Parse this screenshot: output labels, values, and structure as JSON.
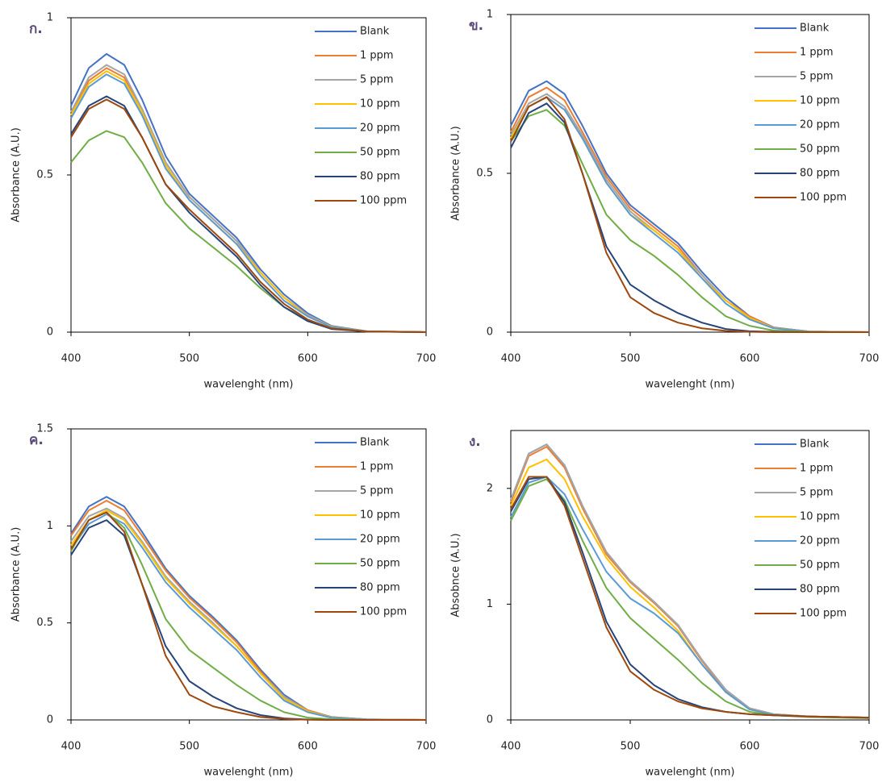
{
  "chart_data": [
    {
      "type": "line",
      "panel_label": "ก.",
      "xlabel": "wavelenght (nm)",
      "ylabel": "Absorbance (A.U.)",
      "x": [
        400,
        415,
        430,
        445,
        460,
        480,
        500,
        520,
        540,
        560,
        580,
        600,
        620,
        650,
        700
      ],
      "xlim": [
        400,
        700
      ],
      "xticks": [
        400,
        500,
        600,
        700
      ],
      "ylim": [
        0,
        1
      ],
      "yticks": [
        0,
        0.5,
        1
      ],
      "series": [
        {
          "name": "Blank",
          "color": "#4472c4",
          "values": [
            0.72,
            0.84,
            0.885,
            0.85,
            0.74,
            0.56,
            0.44,
            0.37,
            0.3,
            0.2,
            0.12,
            0.06,
            0.02,
            0.003,
            0
          ]
        },
        {
          "name": "1 ppm",
          "color": "#ed7d31",
          "values": [
            0.69,
            0.8,
            0.84,
            0.81,
            0.71,
            0.54,
            0.43,
            0.36,
            0.29,
            0.19,
            0.11,
            0.055,
            0.018,
            0.003,
            0
          ]
        },
        {
          "name": "5 ppm",
          "color": "#a5a5a5",
          "values": [
            0.7,
            0.81,
            0.85,
            0.82,
            0.71,
            0.54,
            0.43,
            0.36,
            0.29,
            0.19,
            0.11,
            0.055,
            0.018,
            0.003,
            0
          ]
        },
        {
          "name": "10 ppm",
          "color": "#ffc000",
          "values": [
            0.69,
            0.79,
            0.83,
            0.8,
            0.7,
            0.53,
            0.42,
            0.35,
            0.28,
            0.19,
            0.11,
            0.05,
            0.017,
            0.003,
            0
          ]
        },
        {
          "name": "20 ppm",
          "color": "#5b9bd5",
          "values": [
            0.68,
            0.78,
            0.82,
            0.79,
            0.69,
            0.52,
            0.42,
            0.35,
            0.28,
            0.18,
            0.1,
            0.05,
            0.016,
            0.003,
            0
          ]
        },
        {
          "name": "50 ppm",
          "color": "#70ad47",
          "values": [
            0.54,
            0.61,
            0.64,
            0.62,
            0.54,
            0.41,
            0.33,
            0.27,
            0.21,
            0.14,
            0.08,
            0.04,
            0.012,
            0.002,
            0
          ]
        },
        {
          "name": "80 ppm",
          "color": "#264478",
          "values": [
            0.63,
            0.72,
            0.75,
            0.72,
            0.62,
            0.47,
            0.38,
            0.31,
            0.24,
            0.15,
            0.08,
            0.035,
            0.01,
            0.002,
            0
          ]
        },
        {
          "name": "100 ppm",
          "color": "#9e480e",
          "values": [
            0.62,
            0.71,
            0.74,
            0.71,
            0.62,
            0.47,
            0.39,
            0.32,
            0.25,
            0.16,
            0.09,
            0.04,
            0.012,
            0.002,
            0
          ]
        }
      ]
    },
    {
      "type": "line",
      "panel_label": "ข.",
      "xlabel": "wavelenght (nm)",
      "ylabel": "Absorbance (A.U.)",
      "x": [
        400,
        415,
        430,
        445,
        460,
        480,
        500,
        520,
        540,
        560,
        580,
        600,
        620,
        650,
        700
      ],
      "xlim": [
        400,
        700
      ],
      "xticks": [
        400,
        500,
        600,
        700
      ],
      "ylim": [
        0,
        1
      ],
      "yticks": [
        0,
        0.5,
        1
      ],
      "series": [
        {
          "name": "Blank",
          "color": "#4472c4",
          "values": [
            0.65,
            0.76,
            0.79,
            0.75,
            0.65,
            0.5,
            0.4,
            0.34,
            0.28,
            0.19,
            0.11,
            0.05,
            0.015,
            0.002,
            0
          ]
        },
        {
          "name": "1 ppm",
          "color": "#ed7d31",
          "values": [
            0.63,
            0.74,
            0.77,
            0.73,
            0.63,
            0.49,
            0.39,
            0.33,
            0.27,
            0.18,
            0.1,
            0.05,
            0.014,
            0.002,
            0
          ]
        },
        {
          "name": "5 ppm",
          "color": "#a5a5a5",
          "values": [
            0.62,
            0.72,
            0.75,
            0.71,
            0.62,
            0.48,
            0.38,
            0.32,
            0.26,
            0.18,
            0.1,
            0.045,
            0.013,
            0.002,
            0
          ]
        },
        {
          "name": "10 ppm",
          "color": "#ffc000",
          "values": [
            0.61,
            0.71,
            0.74,
            0.7,
            0.61,
            0.47,
            0.37,
            0.32,
            0.26,
            0.17,
            0.1,
            0.045,
            0.013,
            0.002,
            0
          ]
        },
        {
          "name": "20 ppm",
          "color": "#5b9bd5",
          "values": [
            0.6,
            0.71,
            0.74,
            0.7,
            0.61,
            0.47,
            0.37,
            0.31,
            0.25,
            0.17,
            0.09,
            0.04,
            0.012,
            0.002,
            0
          ]
        },
        {
          "name": "50 ppm",
          "color": "#70ad47",
          "values": [
            0.6,
            0.68,
            0.7,
            0.65,
            0.53,
            0.37,
            0.29,
            0.24,
            0.18,
            0.11,
            0.05,
            0.02,
            0.005,
            0.001,
            0
          ]
        },
        {
          "name": "80 ppm",
          "color": "#264478",
          "values": [
            0.58,
            0.69,
            0.72,
            0.66,
            0.5,
            0.27,
            0.15,
            0.1,
            0.06,
            0.03,
            0.01,
            0.003,
            0.001,
            0,
            0
          ]
        },
        {
          "name": "100 ppm",
          "color": "#9e480e",
          "values": [
            0.6,
            0.71,
            0.74,
            0.67,
            0.5,
            0.25,
            0.11,
            0.06,
            0.03,
            0.012,
            0.004,
            0.001,
            0,
            0,
            0
          ]
        }
      ]
    },
    {
      "type": "line",
      "panel_label": "ค.",
      "xlabel": "wavelenght (nm)",
      "ylabel": "Absorbance (A.U.)",
      "x": [
        400,
        415,
        430,
        445,
        460,
        480,
        500,
        520,
        540,
        560,
        580,
        600,
        620,
        650,
        700
      ],
      "xlim": [
        400,
        700
      ],
      "xticks": [
        400,
        500,
        600,
        700
      ],
      "ylim": [
        0,
        1.5
      ],
      "yticks": [
        0,
        0.5,
        1,
        1.5
      ],
      "series": [
        {
          "name": "Blank",
          "color": "#4472c4",
          "values": [
            0.96,
            1.1,
            1.15,
            1.1,
            0.97,
            0.78,
            0.64,
            0.53,
            0.41,
            0.26,
            0.13,
            0.05,
            0.015,
            0.003,
            0
          ]
        },
        {
          "name": "1 ppm",
          "color": "#ed7d31",
          "values": [
            0.95,
            1.08,
            1.13,
            1.08,
            0.95,
            0.77,
            0.63,
            0.52,
            0.4,
            0.25,
            0.12,
            0.05,
            0.014,
            0.003,
            0
          ]
        },
        {
          "name": "5 ppm",
          "color": "#a5a5a5",
          "values": [
            0.92,
            1.05,
            1.09,
            1.04,
            0.92,
            0.74,
            0.61,
            0.5,
            0.38,
            0.24,
            0.12,
            0.045,
            0.013,
            0.002,
            0
          ]
        },
        {
          "name": "10 ppm",
          "color": "#ffc000",
          "values": [
            0.9,
            1.03,
            1.08,
            1.03,
            0.91,
            0.73,
            0.6,
            0.49,
            0.38,
            0.24,
            0.11,
            0.045,
            0.012,
            0.002,
            0
          ]
        },
        {
          "name": "20 ppm",
          "color": "#5b9bd5",
          "values": [
            0.88,
            1.01,
            1.06,
            1.01,
            0.89,
            0.71,
            0.58,
            0.47,
            0.36,
            0.22,
            0.1,
            0.04,
            0.011,
            0.002,
            0
          ]
        },
        {
          "name": "50 ppm",
          "color": "#70ad47",
          "values": [
            0.87,
            1.03,
            1.07,
            0.99,
            0.8,
            0.52,
            0.36,
            0.27,
            0.18,
            0.1,
            0.04,
            0.012,
            0.003,
            0,
            0
          ]
        },
        {
          "name": "80 ppm",
          "color": "#264478",
          "values": [
            0.85,
            0.99,
            1.03,
            0.95,
            0.7,
            0.38,
            0.2,
            0.12,
            0.06,
            0.025,
            0.008,
            0.002,
            0,
            0,
            0
          ]
        },
        {
          "name": "100 ppm",
          "color": "#9e480e",
          "values": [
            0.88,
            1.03,
            1.07,
            0.97,
            0.7,
            0.33,
            0.13,
            0.07,
            0.04,
            0.015,
            0.005,
            0.001,
            0,
            0,
            0
          ]
        }
      ]
    },
    {
      "type": "line",
      "panel_label": "ง.",
      "xlabel": "wavelenght (nm)",
      "ylabel": "Absobnce (A.U.)",
      "x": [
        400,
        415,
        430,
        445,
        460,
        480,
        500,
        520,
        540,
        560,
        580,
        600,
        620,
        650,
        700
      ],
      "xlim": [
        400,
        700
      ],
      "xticks": [
        400,
        500,
        600,
        700
      ],
      "ylim": [
        0,
        2.5
      ],
      "yticks": [
        0,
        1,
        2
      ],
      "series": [
        {
          "name": "Blank",
          "color": "#4472c4",
          "values": [
            1.9,
            2.3,
            2.38,
            2.2,
            1.85,
            1.45,
            1.2,
            1.02,
            0.82,
            0.52,
            0.26,
            0.1,
            0.05,
            0.03,
            0.02
          ]
        },
        {
          "name": "1 ppm",
          "color": "#ed7d31",
          "values": [
            1.88,
            2.28,
            2.36,
            2.18,
            1.83,
            1.43,
            1.19,
            1.01,
            0.81,
            0.51,
            0.25,
            0.1,
            0.05,
            0.03,
            0.02
          ]
        },
        {
          "name": "5 ppm",
          "color": "#a5a5a5",
          "values": [
            1.9,
            2.3,
            2.38,
            2.2,
            1.85,
            1.45,
            1.2,
            1.02,
            0.82,
            0.52,
            0.26,
            0.1,
            0.05,
            0.03,
            0.02
          ]
        },
        {
          "name": "10 ppm",
          "color": "#ffc000",
          "values": [
            1.85,
            2.18,
            2.25,
            2.08,
            1.76,
            1.4,
            1.15,
            0.97,
            0.77,
            0.48,
            0.24,
            0.09,
            0.045,
            0.03,
            0.02
          ]
        },
        {
          "name": "20 ppm",
          "color": "#5b9bd5",
          "values": [
            1.75,
            2.05,
            2.1,
            1.95,
            1.65,
            1.28,
            1.05,
            0.92,
            0.75,
            0.48,
            0.24,
            0.09,
            0.045,
            0.03,
            0.02
          ]
        },
        {
          "name": "50 ppm",
          "color": "#70ad47",
          "values": [
            1.72,
            2.02,
            2.08,
            1.9,
            1.55,
            1.14,
            0.88,
            0.7,
            0.52,
            0.32,
            0.16,
            0.07,
            0.04,
            0.025,
            0.015
          ]
        },
        {
          "name": "80 ppm",
          "color": "#264478",
          "values": [
            1.8,
            2.08,
            2.1,
            1.88,
            1.45,
            0.85,
            0.48,
            0.3,
            0.18,
            0.11,
            0.07,
            0.05,
            0.04,
            0.03,
            0.02
          ]
        },
        {
          "name": "100 ppm",
          "color": "#9e480e",
          "values": [
            1.82,
            2.1,
            2.1,
            1.85,
            1.4,
            0.8,
            0.42,
            0.26,
            0.16,
            0.1,
            0.07,
            0.05,
            0.04,
            0.03,
            0.02
          ]
        }
      ]
    }
  ]
}
